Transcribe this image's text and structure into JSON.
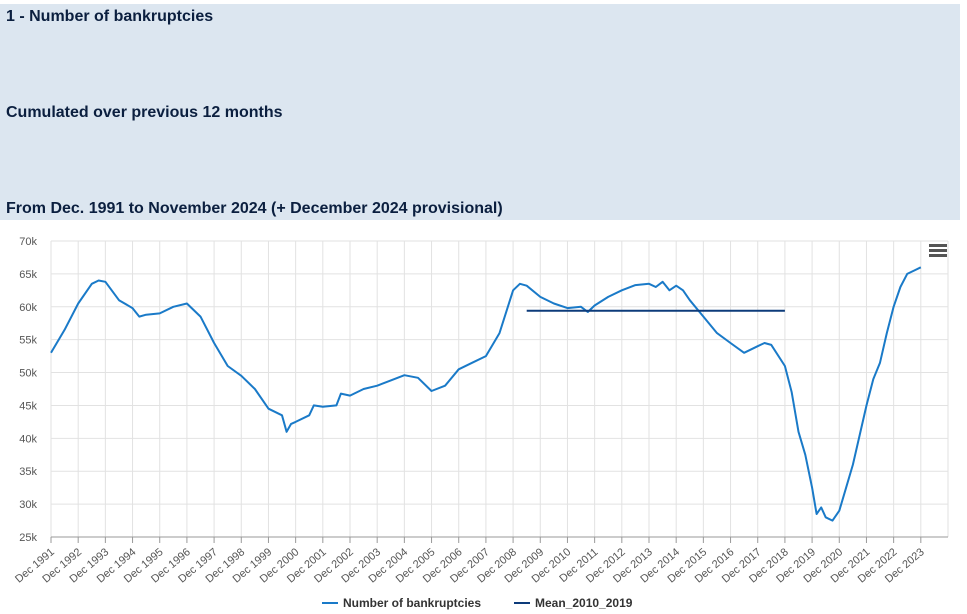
{
  "header": {
    "title": "1 - Number of bankruptcies",
    "subtitle": "Cumulated over previous 12 months",
    "period": "From Dec. 1991 to November 2024 (+ December 2024 provisional)"
  },
  "legend": {
    "series1": "Number of bankruptcies",
    "series2": "Mean_2010_2019"
  },
  "colors": {
    "series1": "#1a7ac8",
    "series2": "#0d3b7a",
    "header_bg": "#dce6f0",
    "grid": "#e2e2e2"
  },
  "menu_icon": "hamburger-menu-icon",
  "chart_data": {
    "type": "line",
    "title": "",
    "xlabel": "",
    "ylabel": "",
    "ylim": [
      25000,
      70000
    ],
    "y_ticks": [
      "25k",
      "30k",
      "35k",
      "40k",
      "45k",
      "50k",
      "55k",
      "60k",
      "65k",
      "70k"
    ],
    "x_ticks": [
      "Dec 1991",
      "Dec 1992",
      "Dec 1993",
      "Dec 1994",
      "Dec 1995",
      "Dec 1996",
      "Dec 1997",
      "Dec 1998",
      "Dec 1999",
      "Dec 2000",
      "Dec 2001",
      "Dec 2002",
      "Dec 2003",
      "Dec 2004",
      "Dec 2005",
      "Dec 2006",
      "Dec 2007",
      "Dec 2008",
      "Dec 2009",
      "Dec 2010",
      "Dec 2011",
      "Dec 2012",
      "Dec 2013",
      "Dec 2014",
      "Dec 2015",
      "Dec 2016",
      "Dec 2017",
      "Dec 2018",
      "Dec 2019",
      "Dec 2020",
      "Dec 2021",
      "Dec 2022",
      "Dec 2023"
    ],
    "x_range": [
      "Dec 1991",
      "Dec 2024"
    ],
    "grid": true,
    "legend_position": "bottom-center",
    "series": [
      {
        "name": "Number of bankruptcies",
        "points": [
          [
            "Dec 1991",
            53000
          ],
          [
            "Jun 1992",
            56500
          ],
          [
            "Dec 1992",
            60500
          ],
          [
            "Jun 1993",
            63500
          ],
          [
            "Sep 1993",
            64000
          ],
          [
            "Dec 1993",
            63800
          ],
          [
            "Jun 1994",
            61000
          ],
          [
            "Dec 1994",
            59800
          ],
          [
            "Mar 1995",
            58500
          ],
          [
            "Jun 1995",
            58800
          ],
          [
            "Dec 1995",
            59000
          ],
          [
            "Jun 1996",
            60000
          ],
          [
            "Dec 1996",
            60500
          ],
          [
            "Jun 1997",
            58500
          ],
          [
            "Dec 1997",
            54500
          ],
          [
            "Jun 1998",
            51000
          ],
          [
            "Dec 1998",
            49500
          ],
          [
            "Jun 1999",
            47500
          ],
          [
            "Dec 1999",
            44500
          ],
          [
            "Jun 2000",
            43500
          ],
          [
            "Aug 2000",
            41000
          ],
          [
            "Oct 2000",
            42200
          ],
          [
            "Dec 2000",
            42500
          ],
          [
            "Jun 2001",
            43500
          ],
          [
            "Aug 2001",
            45000
          ],
          [
            "Dec 2001",
            44800
          ],
          [
            "Jun 2002",
            45000
          ],
          [
            "Aug 2002",
            46800
          ],
          [
            "Dec 2002",
            46500
          ],
          [
            "Jun 2003",
            47500
          ],
          [
            "Dec 2003",
            48000
          ],
          [
            "Jun 2004",
            48800
          ],
          [
            "Dec 2004",
            49600
          ],
          [
            "Jun 2005",
            49200
          ],
          [
            "Dec 2005",
            47200
          ],
          [
            "Jun 2006",
            48000
          ],
          [
            "Dec 2006",
            50500
          ],
          [
            "Jun 2007",
            51500
          ],
          [
            "Dec 2007",
            52500
          ],
          [
            "Jun 2008",
            56000
          ],
          [
            "Dec 2008",
            62500
          ],
          [
            "Mar 2009",
            63500
          ],
          [
            "Jun 2009",
            63200
          ],
          [
            "Dec 2009",
            61500
          ],
          [
            "Jun 2010",
            60500
          ],
          [
            "Dec 2010",
            59800
          ],
          [
            "Jun 2011",
            60000
          ],
          [
            "Sep 2011",
            59200
          ],
          [
            "Dec 2011",
            60200
          ],
          [
            "Jun 2012",
            61500
          ],
          [
            "Dec 2012",
            62500
          ],
          [
            "Jun 2013",
            63300
          ],
          [
            "Dec 2013",
            63500
          ],
          [
            "Mar 2014",
            63000
          ],
          [
            "Jun 2014",
            63800
          ],
          [
            "Sep 2014",
            62500
          ],
          [
            "Dec 2014",
            63200
          ],
          [
            "Mar 2015",
            62500
          ],
          [
            "Jun 2015",
            61000
          ],
          [
            "Dec 2015",
            58500
          ],
          [
            "Jun 2016",
            56000
          ],
          [
            "Dec 2016",
            54500
          ],
          [
            "Jun 2017",
            53000
          ],
          [
            "Dec 2017",
            54000
          ],
          [
            "Mar 2018",
            54500
          ],
          [
            "Jun 2018",
            54200
          ],
          [
            "Dec 2018",
            51000
          ],
          [
            "Mar 2019",
            47000
          ],
          [
            "Jun 2019",
            41000
          ],
          [
            "Sep 2019",
            37500
          ],
          [
            "Dec 2019",
            32500
          ],
          [
            "Feb 2020",
            28500
          ],
          [
            "Apr 2020",
            29500
          ],
          [
            "Jun 2020",
            28000
          ],
          [
            "Sep 2020",
            27500
          ],
          [
            "Dec 2020",
            29000
          ],
          [
            "Mar 2021",
            32500
          ],
          [
            "Jun 2021",
            36000
          ],
          [
            "Sep 2021",
            40500
          ],
          [
            "Dec 2021",
            45000
          ],
          [
            "Mar 2022",
            49000
          ],
          [
            "Jun 2022",
            51500
          ],
          [
            "Sep 2022",
            56000
          ],
          [
            "Dec 2022",
            60000
          ],
          [
            "Mar 2023",
            63000
          ],
          [
            "Jun 2023",
            65000
          ],
          [
            "Sep 2023",
            65500
          ],
          [
            "Dec 2023",
            66000
          ]
        ]
      },
      {
        "name": "Mean_2010_2019",
        "points": [
          [
            "Jun 2009",
            59400
          ],
          [
            "Dec 2018",
            59400
          ]
        ]
      }
    ]
  }
}
